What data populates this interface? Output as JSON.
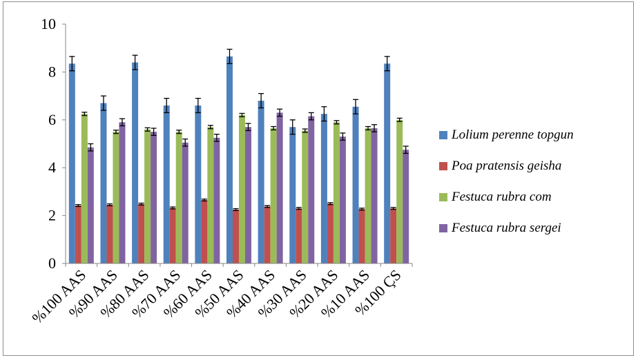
{
  "chart_data": {
    "type": "bar",
    "categories": [
      "%100 AAS",
      "%90 AAS",
      "%80 AAS",
      "%70 AAS",
      "%60 AAS",
      "%50 AAS",
      "%40 AAS",
      "%30 AAS",
      "%20 AAS",
      "%10 AAS",
      "%100 ÇS"
    ],
    "series": [
      {
        "name": "Lolium perenne topgun",
        "color": "#4f81bd",
        "values": [
          8.35,
          6.7,
          8.4,
          6.6,
          6.6,
          8.65,
          6.8,
          5.7,
          6.25,
          6.55,
          8.35
        ],
        "errors": [
          0.3,
          0.3,
          0.3,
          0.3,
          0.3,
          0.3,
          0.3,
          0.3,
          0.3,
          0.3,
          0.3
        ]
      },
      {
        "name": "Poa pratensis geisha",
        "color": "#c0504d",
        "values": [
          2.42,
          2.45,
          2.48,
          2.32,
          2.65,
          2.25,
          2.38,
          2.3,
          2.5,
          2.27,
          2.3
        ],
        "errors": [
          0.04,
          0.04,
          0.04,
          0.04,
          0.04,
          0.04,
          0.04,
          0.04,
          0.04,
          0.04,
          0.04
        ]
      },
      {
        "name": "Festuca rubra com",
        "color": "#9bbb59",
        "values": [
          6.25,
          5.5,
          5.6,
          5.5,
          5.7,
          6.2,
          5.65,
          5.55,
          5.9,
          5.65,
          6.0
        ],
        "errors": [
          0.07,
          0.07,
          0.07,
          0.07,
          0.07,
          0.07,
          0.07,
          0.07,
          0.07,
          0.07,
          0.07
        ]
      },
      {
        "name": "Festuca rubra sergei",
        "color": "#8064a2",
        "values": [
          4.85,
          5.9,
          5.5,
          5.05,
          5.25,
          5.7,
          6.3,
          6.15,
          5.3,
          5.65,
          4.75
        ],
        "errors": [
          0.15,
          0.15,
          0.15,
          0.15,
          0.15,
          0.15,
          0.15,
          0.15,
          0.15,
          0.15,
          0.15
        ]
      }
    ],
    "ylim": [
      0,
      10
    ],
    "yticks": [
      "0",
      "2",
      "4",
      "6",
      "8",
      "10"
    ],
    "grid": false,
    "legend_position": "right",
    "xlabel": "",
    "ylabel": "",
    "title": ""
  }
}
